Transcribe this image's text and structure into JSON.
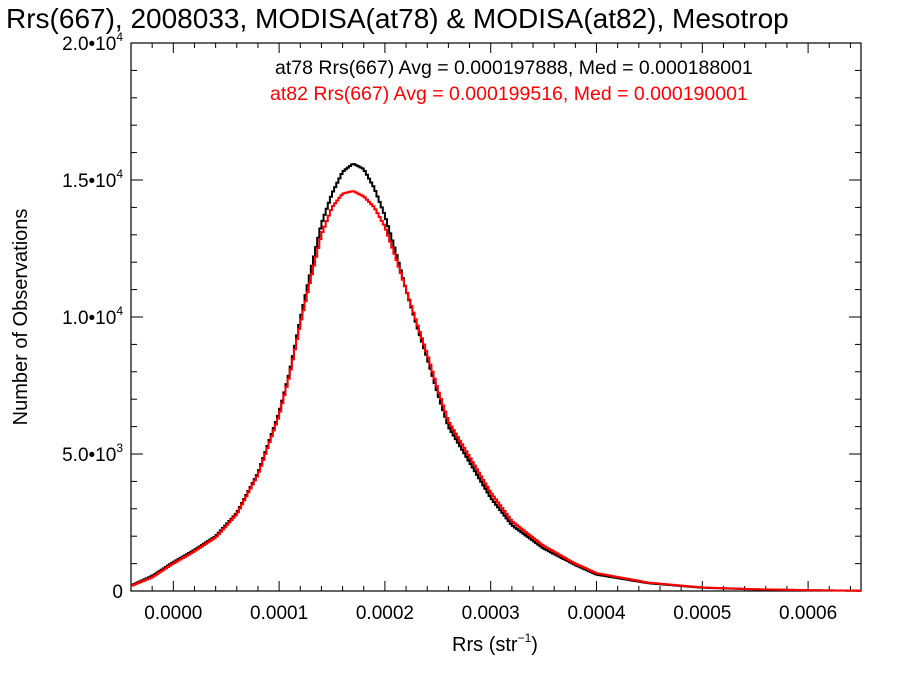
{
  "chart_data": {
    "type": "line",
    "title": "Rrs(667), 2008033, MODISA(at78) & MODISA(at82), Mesotrop",
    "xlabel": {
      "main": "Rrs (str",
      "sup": "−1",
      "close": ")"
    },
    "ylabel": "Number of Observations",
    "xlim": [
      -4e-05,
      0.00065
    ],
    "ylim": [
      0,
      20000
    ],
    "x_ticks": [
      {
        "value": 0.0,
        "label": "0.0000"
      },
      {
        "value": 0.0001,
        "label": "0.0001"
      },
      {
        "value": 0.0002,
        "label": "0.0002"
      },
      {
        "value": 0.0003,
        "label": "0.0003"
      },
      {
        "value": 0.0004,
        "label": "0.0004"
      },
      {
        "value": 0.0005,
        "label": "0.0005"
      },
      {
        "value": 0.0006,
        "label": "0.0006"
      }
    ],
    "y_ticks": [
      {
        "value": 0,
        "base": "0",
        "exp": ""
      },
      {
        "value": 5000,
        "base": "5.0•10",
        "exp": "3"
      },
      {
        "value": 10000,
        "base": "1.0•10",
        "exp": "4"
      },
      {
        "value": 15000,
        "base": "1.5•10",
        "exp": "4"
      },
      {
        "value": 20000,
        "base": "2.0•10",
        "exp": "4"
      }
    ],
    "annotations": [
      {
        "text": "at78 Rrs(667) Avg = 0.000197888, Med = 0.000188001",
        "color": "#000000"
      },
      {
        "text": "at82 Rrs(667) Avg = 0.000199516, Med = 0.000190001",
        "color": "#ff0000"
      }
    ],
    "series": [
      {
        "color": "#000000",
        "x": [
          -4e-05,
          -2e-05,
          0.0,
          2e-05,
          4e-05,
          6e-05,
          8e-05,
          0.0001,
          0.00011,
          0.00012,
          0.00013,
          0.00014,
          0.00015,
          0.00016,
          0.00017,
          0.00018,
          0.00019,
          0.0002,
          0.00021,
          0.00022,
          0.00023,
          0.00024,
          0.00025,
          0.00026,
          0.00028,
          0.0003,
          0.00032,
          0.00035,
          0.00038,
          0.0004,
          0.00045,
          0.0005,
          0.00055,
          0.0006,
          0.00065
        ],
        "y": [
          200,
          550,
          1050,
          1500,
          2000,
          2850,
          4300,
          6500,
          8000,
          9900,
          11700,
          13400,
          14500,
          15300,
          15600,
          15400,
          14700,
          13700,
          12400,
          11000,
          9700,
          8500,
          7200,
          6000,
          4700,
          3400,
          2400,
          1550,
          950,
          600,
          280,
          120,
          60,
          30,
          10
        ]
      },
      {
        "color": "#ff0000",
        "x": [
          -4e-05,
          -2e-05,
          0.0,
          2e-05,
          4e-05,
          6e-05,
          8e-05,
          0.0001,
          0.00011,
          0.00012,
          0.00013,
          0.00014,
          0.00015,
          0.00016,
          0.00017,
          0.00018,
          0.00019,
          0.0002,
          0.00021,
          0.00022,
          0.00023,
          0.00024,
          0.00025,
          0.00026,
          0.00028,
          0.0003,
          0.00032,
          0.00035,
          0.00038,
          0.0004,
          0.00045,
          0.0005,
          0.00055,
          0.0006,
          0.00065
        ],
        "y": [
          180,
          500,
          1000,
          1450,
          1950,
          2800,
          4250,
          6400,
          7900,
          9750,
          11400,
          13000,
          14000,
          14500,
          14600,
          14400,
          14000,
          13300,
          12200,
          11000,
          9800,
          8650,
          7350,
          6200,
          4900,
          3600,
          2550,
          1650,
          1000,
          650,
          300,
          130,
          65,
          30,
          10
        ]
      }
    ]
  }
}
